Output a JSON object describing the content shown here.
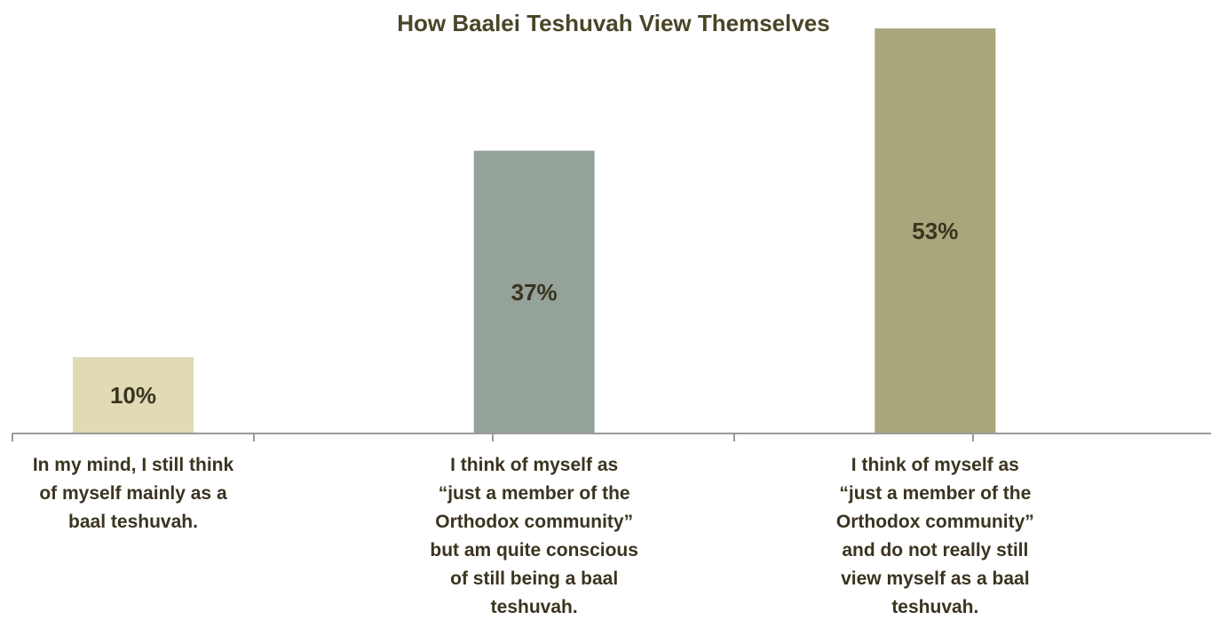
{
  "chart_data": {
    "type": "bar",
    "title": "How Baalei Teshuvah View Themselves",
    "categories": [
      "In my mind, I still think\nof myself mainly as a\nbaal teshuvah.",
      "I think of myself as\n“just a member of the\nOrthodox community”\nbut am quite conscious\nof still being a baal\nteshuvah.",
      "I think of myself as\n“just a member of the\nOrthodox community”\nand do not really still\nview myself as a baal\nteshuvah."
    ],
    "values": [
      10,
      37,
      53
    ],
    "data_labels": [
      "10%",
      "37%",
      "53%"
    ],
    "colors": [
      "#e0dbb5",
      "#94a29a",
      "#a9a67b"
    ],
    "ylim": [
      0,
      53
    ],
    "grid": false,
    "legend": "none"
  }
}
